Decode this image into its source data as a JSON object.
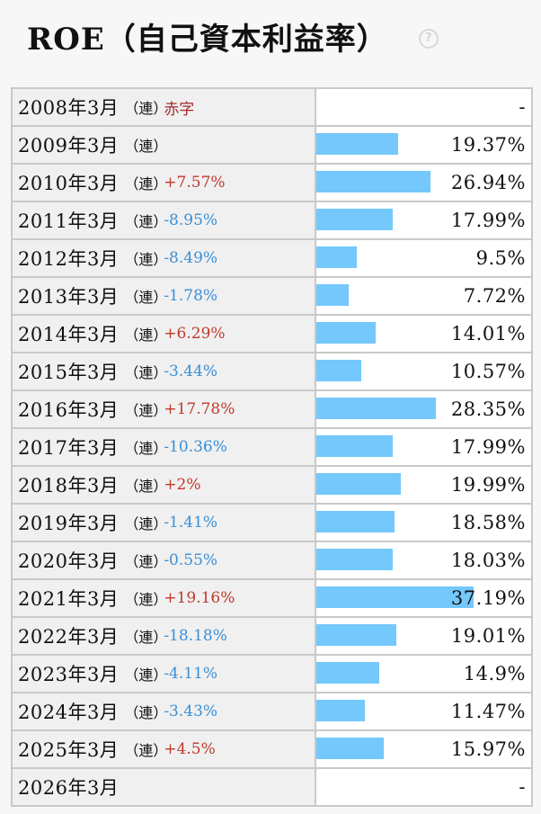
{
  "header": {
    "title": "ROE（自己資本利益率）",
    "help_icon": "question-circle-icon",
    "help_glyph": "?"
  },
  "colors": {
    "bar": "#74c8fb",
    "positive_change": "#c0392b",
    "negative_change": "#3a8fd8"
  },
  "chart_data": {
    "type": "bar",
    "title": "ROE（自己資本利益率）",
    "categories": [
      "2008年3月",
      "2009年3月",
      "2010年3月",
      "2011年3月",
      "2012年3月",
      "2013年3月",
      "2014年3月",
      "2015年3月",
      "2016年3月",
      "2017年3月",
      "2018年3月",
      "2019年3月",
      "2020年3月",
      "2021年3月",
      "2022年3月",
      "2023年3月",
      "2024年3月",
      "2025年3月",
      "2026年3月"
    ],
    "values": [
      null,
      19.37,
      26.94,
      17.99,
      9.5,
      7.72,
      14.01,
      10.57,
      28.35,
      17.99,
      19.99,
      18.58,
      18.03,
      37.19,
      19.01,
      14.9,
      11.47,
      15.97,
      null
    ],
    "bar_max_value": 37.19
  },
  "rows": [
    {
      "period": "2008年3月",
      "consol": "（連）",
      "change": "赤字",
      "change_type": "deficit",
      "value": "-"
    },
    {
      "period": "2009年3月",
      "consol": "（連）",
      "change": "",
      "change_type": "",
      "value": "19.37%"
    },
    {
      "period": "2010年3月",
      "consol": "（連）",
      "change": "+7.57%",
      "change_type": "pos",
      "value": "26.94%"
    },
    {
      "period": "2011年3月",
      "consol": "（連）",
      "change": "-8.95%",
      "change_type": "neg",
      "value": "17.99%"
    },
    {
      "period": "2012年3月",
      "consol": "（連）",
      "change": "-8.49%",
      "change_type": "neg",
      "value": "9.5%"
    },
    {
      "period": "2013年3月",
      "consol": "（連）",
      "change": "-1.78%",
      "change_type": "neg",
      "value": "7.72%"
    },
    {
      "period": "2014年3月",
      "consol": "（連）",
      "change": "+6.29%",
      "change_type": "pos",
      "value": "14.01%"
    },
    {
      "period": "2015年3月",
      "consol": "（連）",
      "change": "-3.44%",
      "change_type": "neg",
      "value": "10.57%"
    },
    {
      "period": "2016年3月",
      "consol": "（連）",
      "change": "+17.78%",
      "change_type": "pos",
      "value": "28.35%"
    },
    {
      "period": "2017年3月",
      "consol": "（連）",
      "change": "-10.36%",
      "change_type": "neg",
      "value": "17.99%"
    },
    {
      "period": "2018年3月",
      "consol": "（連）",
      "change": "+2%",
      "change_type": "pos",
      "value": "19.99%"
    },
    {
      "period": "2019年3月",
      "consol": "（連）",
      "change": "-1.41%",
      "change_type": "neg",
      "value": "18.58%"
    },
    {
      "period": "2020年3月",
      "consol": "（連）",
      "change": "-0.55%",
      "change_type": "neg",
      "value": "18.03%"
    },
    {
      "period": "2021年3月",
      "consol": "（連）",
      "change": "+19.16%",
      "change_type": "pos",
      "value": "37.19%"
    },
    {
      "period": "2022年3月",
      "consol": "（連）",
      "change": "-18.18%",
      "change_type": "neg",
      "value": "19.01%"
    },
    {
      "period": "2023年3月",
      "consol": "（連）",
      "change": "-4.11%",
      "change_type": "neg",
      "value": "14.9%"
    },
    {
      "period": "2024年3月",
      "consol": "（連）",
      "change": "-3.43%",
      "change_type": "neg",
      "value": "11.47%"
    },
    {
      "period": "2025年3月",
      "consol": "（連）",
      "change": "+4.5%",
      "change_type": "pos",
      "value": "15.97%"
    },
    {
      "period": "2026年3月",
      "consol": "",
      "change": "",
      "change_type": "",
      "value": "-"
    }
  ]
}
